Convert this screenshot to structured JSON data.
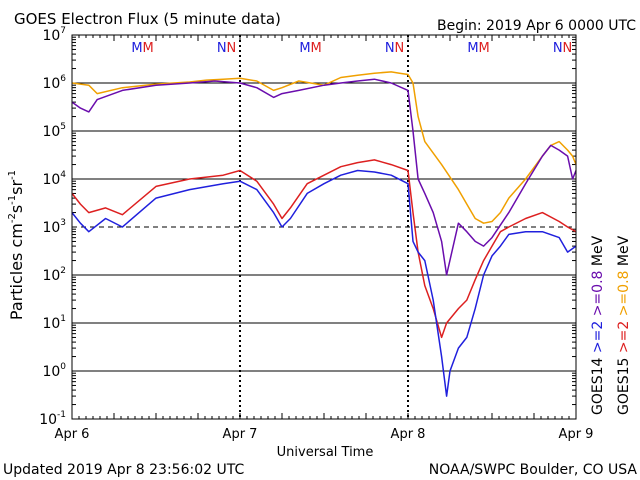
{
  "chart_data": {
    "type": "line",
    "title": "GOES Electron Flux (5 minute data)",
    "begin_label": "Begin: 2019 Apr 6 0000 UTC",
    "xlabel": "Universal Time",
    "ylabel_main": "Particles cm",
    "ylabel_sup1": "-2",
    "ylabel_mid": "s",
    "ylabel_sup2": "-1",
    "ylabel_mid2": "sr",
    "ylabel_sup3": "-1",
    "updated": "Updated 2019 Apr  8 23:56:02 UTC",
    "credit": "NOAA/SWPC Boulder, CO USA",
    "y_scale": "log",
    "ylim": [
      0.1,
      10000000
    ],
    "y_ticks": [
      {
        "base": "10",
        "exp": "-1",
        "value": 0.1
      },
      {
        "base": "10",
        "exp": "0",
        "value": 1
      },
      {
        "base": "10",
        "exp": "1",
        "value": 10
      },
      {
        "base": "10",
        "exp": "2",
        "value": 100
      },
      {
        "base": "10",
        "exp": "3",
        "value": 1000
      },
      {
        "base": "10",
        "exp": "4",
        "value": 10000
      },
      {
        "base": "10",
        "exp": "5",
        "value": 100000
      },
      {
        "base": "10",
        "exp": "6",
        "value": 1000000
      },
      {
        "base": "10",
        "exp": "7",
        "value": 10000000
      }
    ],
    "xlim": [
      0,
      3
    ],
    "x_ticks": [
      {
        "label": "Apr 6",
        "day": 0
      },
      {
        "label": "Apr 7",
        "day": 1
      },
      {
        "label": "Apr 8",
        "day": 2
      },
      {
        "label": "Apr 9",
        "day": 3
      }
    ],
    "threshold_dashed": 1000,
    "grid": true,
    "noon_midnight_markers": [
      {
        "day": 0.42,
        "letters": [
          {
            "t": "M",
            "color": "#2020dd"
          },
          {
            "t": "M",
            "color": "#dd2020"
          }
        ]
      },
      {
        "day": 0.92,
        "letters": [
          {
            "t": "N",
            "color": "#2020dd"
          },
          {
            "t": "N",
            "color": "#dd2020"
          }
        ]
      },
      {
        "day": 1.42,
        "letters": [
          {
            "t": "M",
            "color": "#2020dd"
          },
          {
            "t": "M",
            "color": "#dd2020"
          }
        ]
      },
      {
        "day": 1.92,
        "letters": [
          {
            "t": "N",
            "color": "#2020dd"
          },
          {
            "t": "N",
            "color": "#dd2020"
          }
        ]
      },
      {
        "day": 2.42,
        "letters": [
          {
            "t": "M",
            "color": "#2020dd"
          },
          {
            "t": "M",
            "color": "#dd2020"
          }
        ]
      },
      {
        "day": 2.92,
        "letters": [
          {
            "t": "N",
            "color": "#2020dd"
          },
          {
            "t": "N",
            "color": "#dd2020"
          }
        ]
      }
    ],
    "legend_placement": "right",
    "legend": [
      {
        "label": ">=2",
        "color": "#2020dd"
      },
      {
        "label": ">=0.8",
        "color": "#6a0dad"
      },
      {
        "label": "MeV",
        "color": "#000000"
      },
      {
        "label": ">=2",
        "color": "#dd2020"
      },
      {
        "label": ">=0.8",
        "color": "#f0a000"
      },
      {
        "label": "MeV",
        "color": "#000000"
      }
    ],
    "legend_sat": [
      "GOES14",
      "GOES15"
    ],
    "series": [
      {
        "name": "GOES15 >=0.8 MeV",
        "color": "#f0a000",
        "x": [
          0,
          0.1,
          0.15,
          0.3,
          0.5,
          0.7,
          0.8,
          0.9,
          1.0,
          1.1,
          1.2,
          1.25,
          1.35,
          1.5,
          1.6,
          1.7,
          1.8,
          1.9,
          1.95,
          2.0,
          2.03,
          2.06,
          2.1,
          2.2,
          2.3,
          2.35,
          2.4,
          2.45,
          2.5,
          2.55,
          2.6,
          2.7,
          2.8,
          2.85,
          2.9,
          2.95,
          2.98,
          3.0
        ],
        "y": [
          1000000,
          900000,
          600000,
          800000,
          950000,
          1050000,
          1150000,
          1200000,
          1250000,
          1100000,
          700000,
          800000,
          1100000,
          900000,
          1300000,
          1450000,
          1600000,
          1700000,
          1600000,
          1500000,
          1000000,
          200000,
          60000,
          20000,
          6000,
          3000,
          1500,
          1200,
          1300,
          2000,
          4000,
          10000,
          30000,
          50000,
          60000,
          40000,
          30000,
          20000
        ]
      },
      {
        "name": "GOES15 >=2 MeV",
        "color": "#dd2020",
        "x": [
          0,
          0.05,
          0.1,
          0.2,
          0.3,
          0.5,
          0.7,
          0.9,
          1.0,
          1.1,
          1.2,
          1.25,
          1.3,
          1.4,
          1.5,
          1.6,
          1.7,
          1.8,
          1.9,
          2.0,
          2.03,
          2.06,
          2.1,
          2.15,
          2.2,
          2.23,
          2.3,
          2.35,
          2.4,
          2.45,
          2.5,
          2.55,
          2.6,
          2.7,
          2.8,
          2.9,
          2.95,
          3.0
        ],
        "y": [
          5000,
          3000,
          2000,
          2500,
          1800,
          7000,
          10000,
          12000,
          15000,
          9000,
          3000,
          1500,
          2500,
          8000,
          12000,
          18000,
          22000,
          25000,
          20000,
          15000,
          2000,
          300,
          60,
          20,
          5,
          10,
          20,
          30,
          80,
          200,
          400,
          800,
          1000,
          1500,
          2000,
          1300,
          1000,
          800
        ]
      },
      {
        "name": "GOES14 >=0.8 MeV",
        "color": "#6a0dad",
        "x": [
          0,
          0.05,
          0.1,
          0.15,
          0.3,
          0.5,
          0.7,
          0.85,
          1.0,
          1.1,
          1.2,
          1.25,
          1.35,
          1.5,
          1.6,
          1.7,
          1.8,
          1.9,
          2.0,
          2.03,
          2.06,
          2.1,
          2.15,
          2.2,
          2.23,
          2.3,
          2.35,
          2.4,
          2.45,
          2.5,
          2.6,
          2.7,
          2.8,
          2.85,
          2.9,
          2.95,
          2.98,
          3.0
        ],
        "y": [
          400000,
          300000,
          250000,
          450000,
          700000,
          900000,
          1000000,
          1100000,
          1000000,
          800000,
          500000,
          600000,
          700000,
          900000,
          1000000,
          1100000,
          1200000,
          1000000,
          700000,
          100000,
          10000,
          5000,
          2000,
          500,
          100,
          1200,
          800,
          500,
          400,
          600,
          2000,
          8000,
          30000,
          50000,
          40000,
          30000,
          10000,
          15000
        ]
      },
      {
        "name": "GOES14 >=2 MeV",
        "color": "#2020dd",
        "x": [
          0,
          0.05,
          0.1,
          0.2,
          0.3,
          0.5,
          0.7,
          0.9,
          1.0,
          1.1,
          1.2,
          1.25,
          1.3,
          1.4,
          1.5,
          1.6,
          1.7,
          1.8,
          1.9,
          2.0,
          2.03,
          2.06,
          2.1,
          2.15,
          2.2,
          2.23,
          2.25,
          2.3,
          2.35,
          2.4,
          2.45,
          2.5,
          2.55,
          2.6,
          2.7,
          2.8,
          2.9,
          2.95,
          3.0
        ],
        "y": [
          2000,
          1200,
          800,
          1500,
          1000,
          4000,
          6000,
          8000,
          9000,
          6000,
          2000,
          1000,
          1500,
          5000,
          8000,
          12000,
          15000,
          14000,
          12000,
          8000,
          500,
          300,
          200,
          30,
          2,
          0.3,
          1,
          3,
          5,
          20,
          100,
          250,
          400,
          700,
          800,
          800,
          600,
          300,
          400
        ]
      }
    ]
  }
}
